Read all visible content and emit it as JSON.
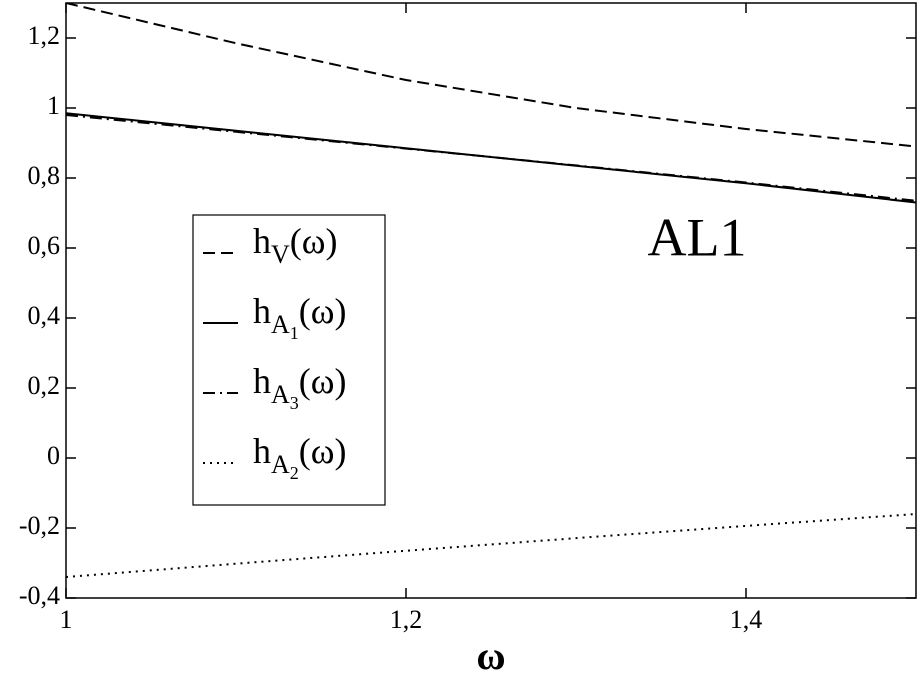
{
  "chart_data": {
    "type": "line",
    "x_label": "ω",
    "annotation": "AL1",
    "x": [
      1,
      1.1,
      1.2,
      1.3,
      1.4,
      1.5
    ],
    "series": [
      {
        "name": "hV(ω)",
        "color": "#000000",
        "dash": "dashed",
        "values": [
          1.3,
          1.185,
          1.08,
          1.0,
          0.94,
          0.89
        ]
      },
      {
        "name": "hA1(ω)",
        "color": "#000000",
        "dash": "solid",
        "values": [
          0.985,
          0.935,
          0.885,
          0.835,
          0.785,
          0.73
        ]
      },
      {
        "name": "hA3(ω)",
        "color": "#000000",
        "dash": "dashdot",
        "values": [
          0.98,
          0.932,
          0.884,
          0.836,
          0.787,
          0.735
        ]
      },
      {
        "name": "hA2(ω)",
        "color": "#000000",
        "dash": "dotted",
        "values": [
          -0.34,
          -0.302,
          -0.265,
          -0.229,
          -0.194,
          -0.16
        ]
      }
    ],
    "xlim": [
      1,
      1.5
    ],
    "ylim": [
      -0.4,
      1.3
    ],
    "xticks": [
      1,
      {
        "value": 1.2,
        "label": "1,2"
      },
      {
        "value": 1.4,
        "label": "1,4"
      }
    ],
    "yticks": [
      {
        "value": -0.4,
        "label": "-0,4"
      },
      {
        "value": -0.2,
        "label": "-0,2"
      },
      0,
      {
        "value": 0.2,
        "label": "0,2"
      },
      {
        "value": 0.4,
        "label": "0,4"
      },
      {
        "value": 0.6,
        "label": "0,6"
      },
      {
        "value": 0.8,
        "label": "0,8"
      },
      1,
      {
        "value": 1.2,
        "label": "1,2"
      }
    ]
  }
}
